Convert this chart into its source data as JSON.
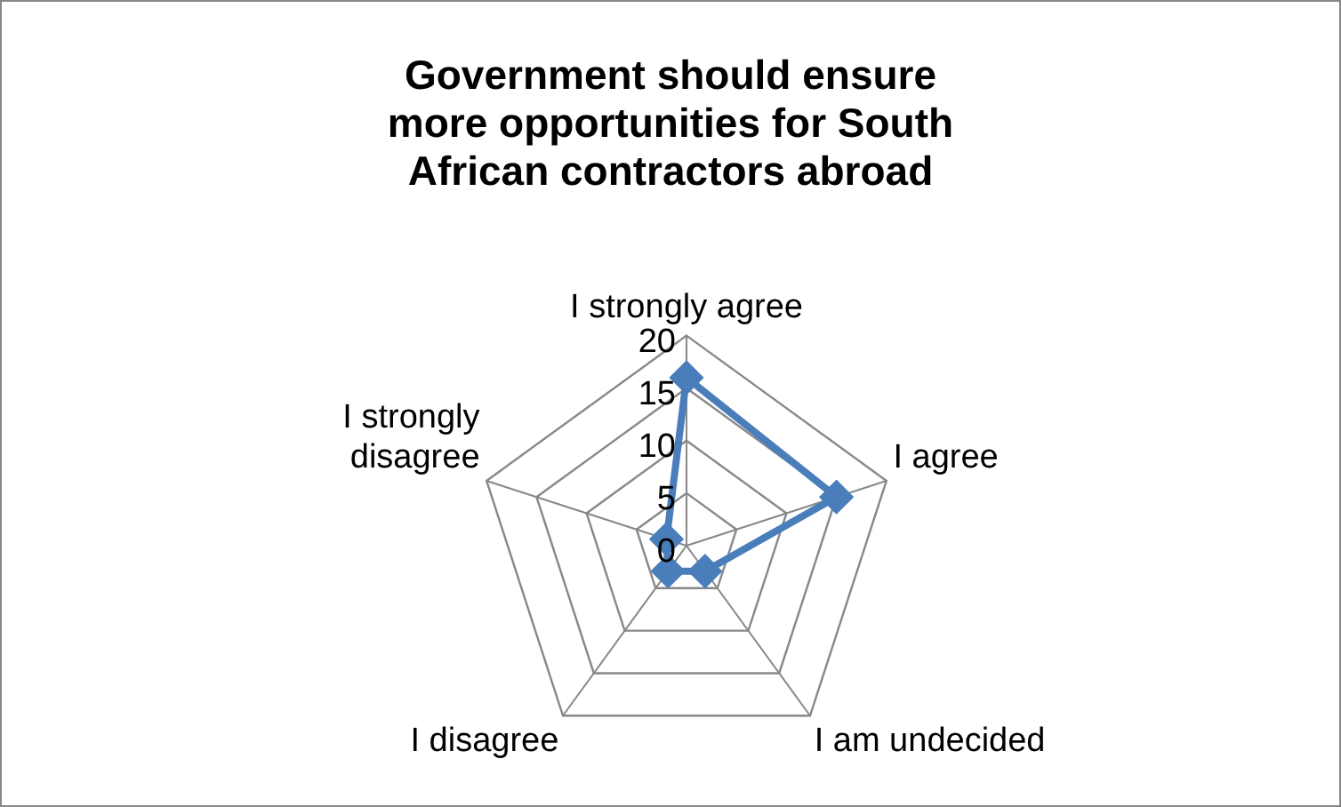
{
  "chart_data": {
    "type": "radar",
    "title": "Government should ensure more opportunities for South African contractors abroad",
    "categories": [
      "I strongly agree",
      "I agree",
      "I am undecided",
      "I disagree",
      "I strongly disagree"
    ],
    "series": [
      {
        "color": "#4a7ebb",
        "values": [
          16,
          15,
          3,
          3,
          2
        ]
      }
    ],
    "ylim": [
      0,
      20
    ],
    "yticks": [
      0,
      5,
      10,
      15,
      20
    ],
    "grid": true,
    "marker": "diamond",
    "legend": false
  }
}
